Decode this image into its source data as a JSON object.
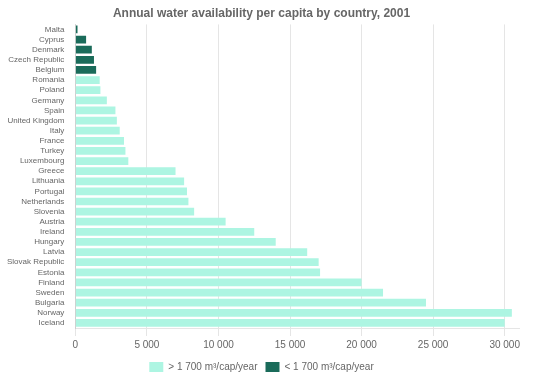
{
  "chart_data": {
    "type": "bar",
    "orientation": "horizontal",
    "title": "Annual water availability per capita by country, 2001",
    "categories": [
      "Malta",
      "Cyprus",
      "Denmark",
      "Czech Republic",
      "Belgium",
      "Romania",
      "Poland",
      "Germany",
      "Spain",
      "United Kingdom",
      "Italy",
      "France",
      "Turkey",
      "Luxembourg",
      "Greece",
      "Lithuania",
      "Portugal",
      "Netherlands",
      "Slovenia",
      "Austria",
      "Ireland",
      "Hungary",
      "Latvia",
      "Slovak Republic",
      "Estonia",
      "Finland",
      "Sweden",
      "Bulgaria",
      "Norway",
      "Iceland"
    ],
    "series": [
      {
        "name": "> 1 700 m³/cap/year",
        "color": "#adf5e2",
        "values": [
          null,
          null,
          null,
          null,
          null,
          1700,
          1750,
          2200,
          2800,
          2900,
          3100,
          3400,
          3500,
          3700,
          7000,
          7600,
          7800,
          7900,
          8300,
          10500,
          12500,
          14000,
          16200,
          17000,
          17100,
          20000,
          21500,
          24500,
          30500,
          30000
        ]
      },
      {
        "name": "< 1 700 m³/cap/year",
        "color": "#1a6b5a",
        "values": [
          150,
          750,
          1150,
          1300,
          1450,
          null,
          null,
          null,
          null,
          null,
          null,
          null,
          null,
          null,
          null,
          null,
          null,
          null,
          null,
          null,
          null,
          null,
          null,
          null,
          null,
          null,
          null,
          null,
          null,
          null
        ]
      }
    ],
    "xlim": [
      0,
      31000
    ],
    "xticks": [
      0,
      {
        "value": 5000,
        "label": "5 000"
      },
      {
        "value": 10000,
        "label": "10 000"
      },
      {
        "value": 15000,
        "label": "15 000"
      },
      {
        "value": 20000,
        "label": "20 000"
      },
      {
        "value": 25000,
        "label": "25 000"
      },
      {
        "value": 30000,
        "label": "30 000"
      }
    ],
    "grid": true,
    "legend": "bottom"
  }
}
